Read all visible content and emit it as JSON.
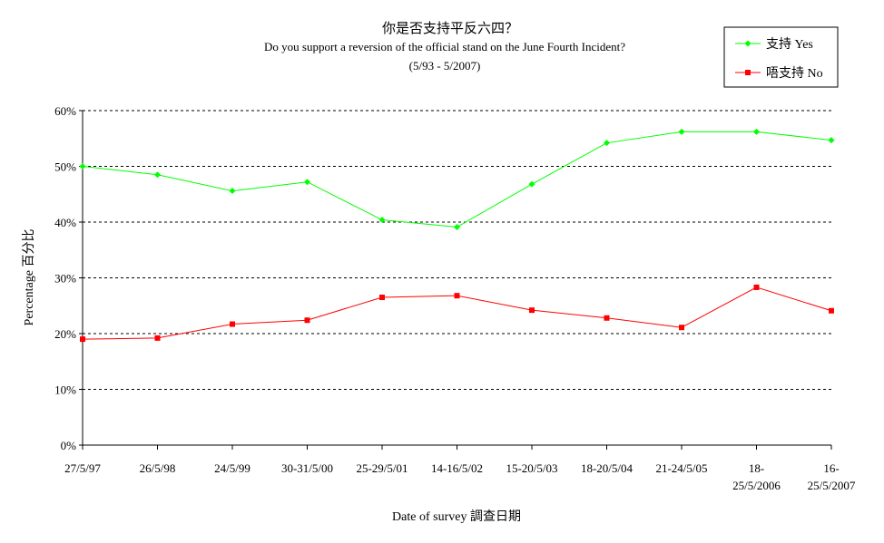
{
  "chart_data": {
    "type": "line",
    "title": "你是否支持平反六四？",
    "subtitle": "Do you support a reversion of the official stand on the June Fourth Incident?",
    "period": "(5/93 - 5/2007)",
    "xlabel": "Date of survey  調查日期",
    "ylabel": "Percentage  百分比",
    "ylim": [
      0,
      60
    ],
    "yticks": [
      "0%",
      "10%",
      "20%",
      "30%",
      "40%",
      "50%",
      "60%"
    ],
    "grid": true,
    "legend_position": "top-right",
    "categories": [
      [
        "27/5/97"
      ],
      [
        "26/5/98"
      ],
      [
        "24/5/99"
      ],
      [
        "30-31/5/00"
      ],
      [
        "25-29/5/01"
      ],
      [
        "14-16/5/02"
      ],
      [
        "15-20/5/03"
      ],
      [
        "18-20/5/04"
      ],
      [
        "21-24/5/05"
      ],
      [
        "18-",
        "25/5/2006"
      ],
      [
        "16-",
        "25/5/2007"
      ]
    ],
    "series": [
      {
        "name": "支持 Yes",
        "color": "#00ff00",
        "marker": "diamond",
        "values": [
          50,
          48.5,
          45.6,
          47.2,
          40.4,
          39.1,
          46.8,
          54.2,
          56.2,
          56.2,
          54.7
        ]
      },
      {
        "name": "唔支持 No",
        "color": "#ff0000",
        "marker": "square",
        "values": [
          19.0,
          19.2,
          21.7,
          22.4,
          26.5,
          26.8,
          24.2,
          22.8,
          21.1,
          28.3,
          24.1
        ]
      }
    ]
  }
}
